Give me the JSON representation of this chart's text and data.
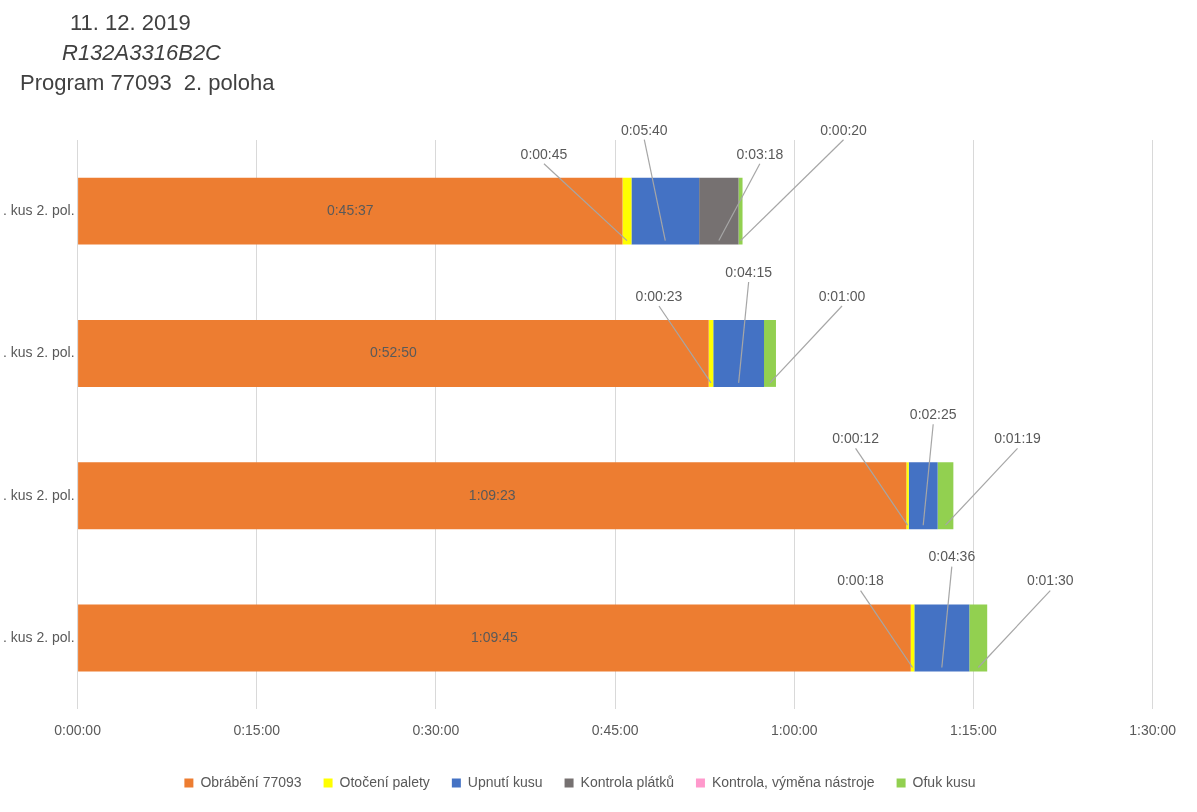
{
  "chart_data": {
    "type": "bar",
    "orientation": "horizontal",
    "stacked": true,
    "title": "11. 12. 2019",
    "subtitle": "R132A3316B2C",
    "annotations": [
      "Program 77093  2. poloha"
    ],
    "categories": [
      ". kus 2. pol.",
      ". kus 2. pol.",
      ". kus 2. pol.",
      ". kus 2. pol."
    ],
    "series": [
      {
        "name": "Obrábění 77093",
        "color": "#ed7d31",
        "values": [
          45.617,
          52.833,
          69.383,
          69.75
        ],
        "value_labels": [
          "0:45:37",
          "0:52:50",
          "1:09:23",
          "1:09:45"
        ]
      },
      {
        "name": "Otočení palety",
        "color": "#ffff00",
        "values": [
          0.75,
          0.383,
          0.2,
          0.3
        ],
        "value_labels": [
          "0:00:45",
          "0:00:23",
          "0:00:12",
          "0:00:18"
        ]
      },
      {
        "name": "Upnutí kusu",
        "color": "#4472c4",
        "values": [
          5.667,
          4.25,
          2.417,
          4.6
        ],
        "value_labels": [
          "0:05:40",
          "0:04:15",
          "0:02:25",
          "0:04:36"
        ]
      },
      {
        "name": "Kontrola plátků",
        "color": "#767171",
        "values": [
          3.3,
          null,
          null,
          null
        ],
        "value_labels": [
          "0:03:18",
          null,
          null,
          null
        ]
      },
      {
        "name": "Kontrola, výměna nástroje",
        "color": "#ff99cc",
        "values": [
          null,
          null,
          null,
          null
        ],
        "value_labels": [
          null,
          null,
          null,
          null
        ]
      },
      {
        "name": "Ofuk kusu",
        "color": "#92d050",
        "values": [
          0.333,
          1,
          1.317,
          1.5
        ],
        "value_labels": [
          "0:00:20",
          "0:01:00",
          "0:01:19",
          "0:01:30"
        ]
      }
    ],
    "xlim": [
      0,
      90
    ],
    "xticks": [
      {
        "value": 0,
        "label": "0:00:00"
      },
      {
        "value": 15,
        "label": "0:15:00"
      },
      {
        "value": 30,
        "label": "0:30:00"
      },
      {
        "value": 45,
        "label": "0:45:00"
      },
      {
        "value": 60,
        "label": "1:00:00"
      },
      {
        "value": 75,
        "label": "1:15:00"
      },
      {
        "value": 90,
        "label": "1:30:00"
      }
    ],
    "grid": "x",
    "legend": "bottom"
  }
}
